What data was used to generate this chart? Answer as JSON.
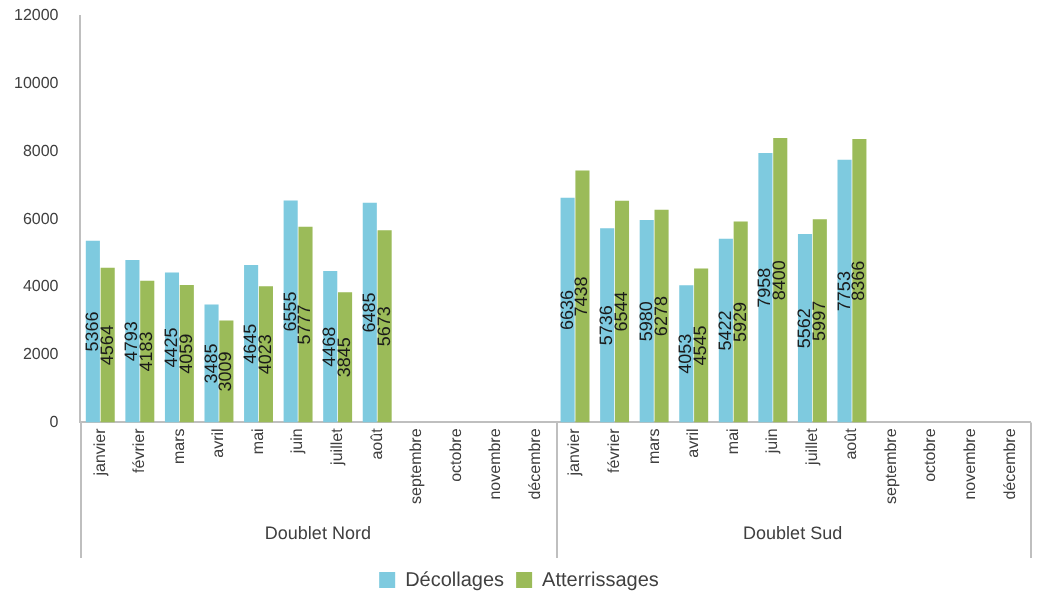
{
  "chart_data": {
    "type": "bar",
    "categories": [
      "janvier",
      "février",
      "mars",
      "avril",
      "mai",
      "juin",
      "juillet",
      "août",
      "septembre",
      "octobre",
      "novembre",
      "décembre",
      "janvier",
      "février",
      "mars",
      "avril",
      "mai",
      "juin",
      "juillet",
      "août",
      "septembre",
      "octobre",
      "novembre",
      "décembre"
    ],
    "series": [
      {
        "name": "Décollages",
        "color": "#7ecadf",
        "values": [
          5366,
          4793,
          4425,
          3485,
          4645,
          6555,
          4468,
          6485,
          null,
          null,
          null,
          null,
          6636,
          5736,
          5980,
          4053,
          5422,
          7958,
          5562,
          7753,
          null,
          null,
          null,
          null
        ]
      },
      {
        "name": "Atterrissages",
        "color": "#9bbb59",
        "values": [
          4564,
          4183,
          4059,
          3009,
          4023,
          5777,
          3845,
          5673,
          null,
          null,
          null,
          null,
          7438,
          6544,
          6278,
          4545,
          5929,
          8400,
          5997,
          8366,
          null,
          null,
          null,
          null
        ]
      }
    ],
    "annotations": [
      "Doublet Nord",
      "Doublet Sud"
    ],
    "ylim": [
      0,
      12000
    ],
    "yticks": [
      0,
      2000,
      4000,
      6000,
      8000,
      10000,
      12000
    ],
    "data_labels": true,
    "legend": "bottom",
    "grid": false
  }
}
